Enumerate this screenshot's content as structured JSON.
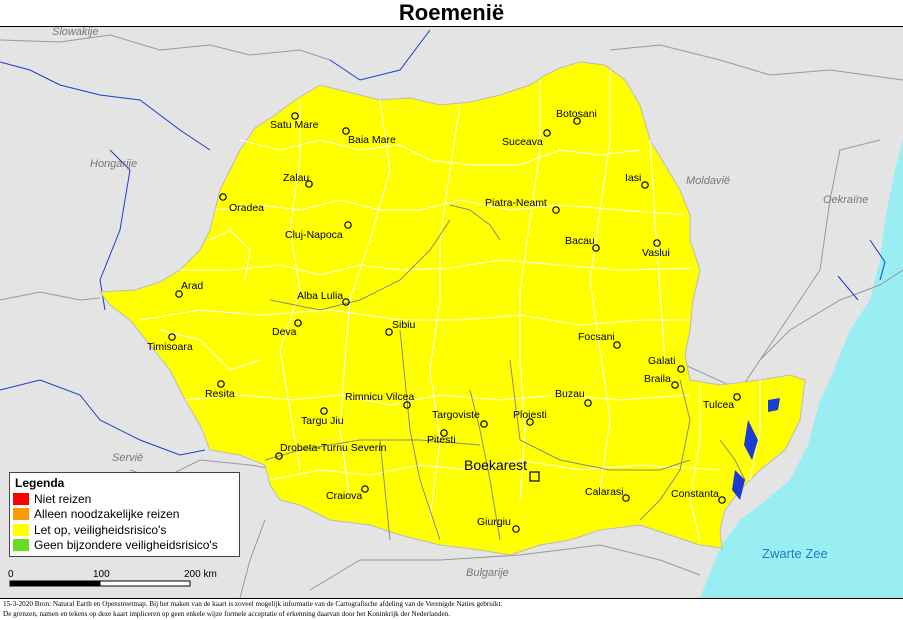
{
  "title": "Roemenië",
  "countries": {
    "slovakia": "Slowakije",
    "hungary": "Hongarije",
    "moldova": "Moldavië",
    "ukraine": "Oekraïne",
    "serbia": "Servië",
    "bulgaria": "Bulgarije",
    "sea": "Zwarte Zee"
  },
  "cities": {
    "satu_mare": "Satu Mare",
    "baia_mare": "Baia Mare",
    "botosani": "Botosani",
    "suceava": "Suceava",
    "zalau": "Zalau",
    "iasi": "Iasi",
    "oradea": "Oradea",
    "piatra_neamt": "Piatra-Neamt",
    "cluj": "Cluj-Napoca",
    "bacau": "Bacau",
    "vaslui": "Vaslui",
    "arad": "Arad",
    "alba_iulia": "Alba Lulia",
    "sibiu": "Sibiu",
    "deva": "Deva",
    "timisoara": "Timisoara",
    "focsani": "Focsani",
    "galati": "Galati",
    "braila": "Braila",
    "resita": "Resita",
    "rimnicu": "Rimnicu Vilcea",
    "buzau": "Buzau",
    "tulcea": "Tulcea",
    "targu_jiu": "Targu Jiu",
    "targoviste": "Targoviste",
    "ploiesti": "Ploiesti",
    "pitesti": "Pitesti",
    "drobeta": "Drobeta-Turnu Severin",
    "bucharest": "Boekarest",
    "craiova": "Craiova",
    "calarasi": "Calarasi",
    "constanta": "Constanta",
    "giurgiu": "Giurgiu"
  },
  "legend": {
    "title": "Legenda",
    "items": [
      {
        "label": "Niet reizen",
        "color": "#ff0000"
      },
      {
        "label": "Alleen noodzakelijke reizen",
        "color": "#ff9900"
      },
      {
        "label": "Let op, veiligheidsrisico's",
        "color": "#ffff00"
      },
      {
        "label": "Geen bijzondere veiligheidsrisico's",
        "color": "#66dd22"
      }
    ]
  },
  "scale": {
    "t0": "0",
    "t1": "100",
    "t2": "200 km"
  },
  "footer": {
    "line1": "15-3-2020 Bron: Natural Earth en Openstreetmap. Bij het maken van de kaart is zoveel mogelijk informatie van de Cartografische afdeling van de Verenigde Naties gebruikt.",
    "line2": "De grenzen, namen en tekens op deze kaart impliceren op geen enkele wijze formele acceptatie of erkenning daarvan door het Koninkrijk der Nederlanden."
  },
  "colors": {
    "land": "#e4e4e4",
    "romania": "#ffff00",
    "sea": "#99eef4",
    "water": "#1a3cd0",
    "border": "#ffffff"
  }
}
